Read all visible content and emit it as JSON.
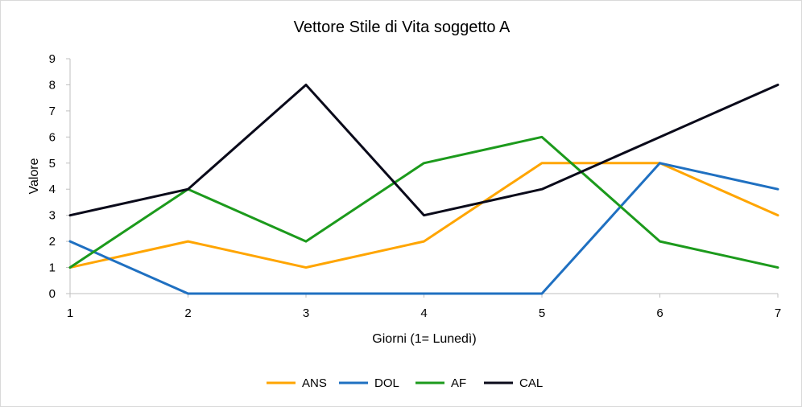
{
  "chart_data": {
    "type": "line",
    "title": "Vettore Stile di Vita soggetto A",
    "xlabel": "Giorni (1= Lunedì)",
    "ylabel": "Valore",
    "x": [
      1,
      2,
      3,
      4,
      5,
      6,
      7
    ],
    "xlim": [
      1,
      7
    ],
    "ylim": [
      0,
      9
    ],
    "yticks": [
      0,
      1,
      2,
      3,
      4,
      5,
      6,
      7,
      8,
      9
    ],
    "grid": false,
    "legend_position": "bottom",
    "series": [
      {
        "name": "ANS",
        "color": "#FFA500",
        "values": [
          1,
          2,
          1,
          2,
          5,
          5,
          3
        ]
      },
      {
        "name": "DOL",
        "color": "#1F70C1",
        "values": [
          2,
          0,
          0,
          0,
          0,
          5,
          4
        ]
      },
      {
        "name": "AF",
        "color": "#1C9A1C",
        "values": [
          1,
          4,
          2,
          5,
          6,
          2,
          1
        ]
      },
      {
        "name": "CAL",
        "color": "#0A0A1A",
        "values": [
          3,
          4,
          8,
          3,
          4,
          6,
          8
        ]
      }
    ]
  }
}
